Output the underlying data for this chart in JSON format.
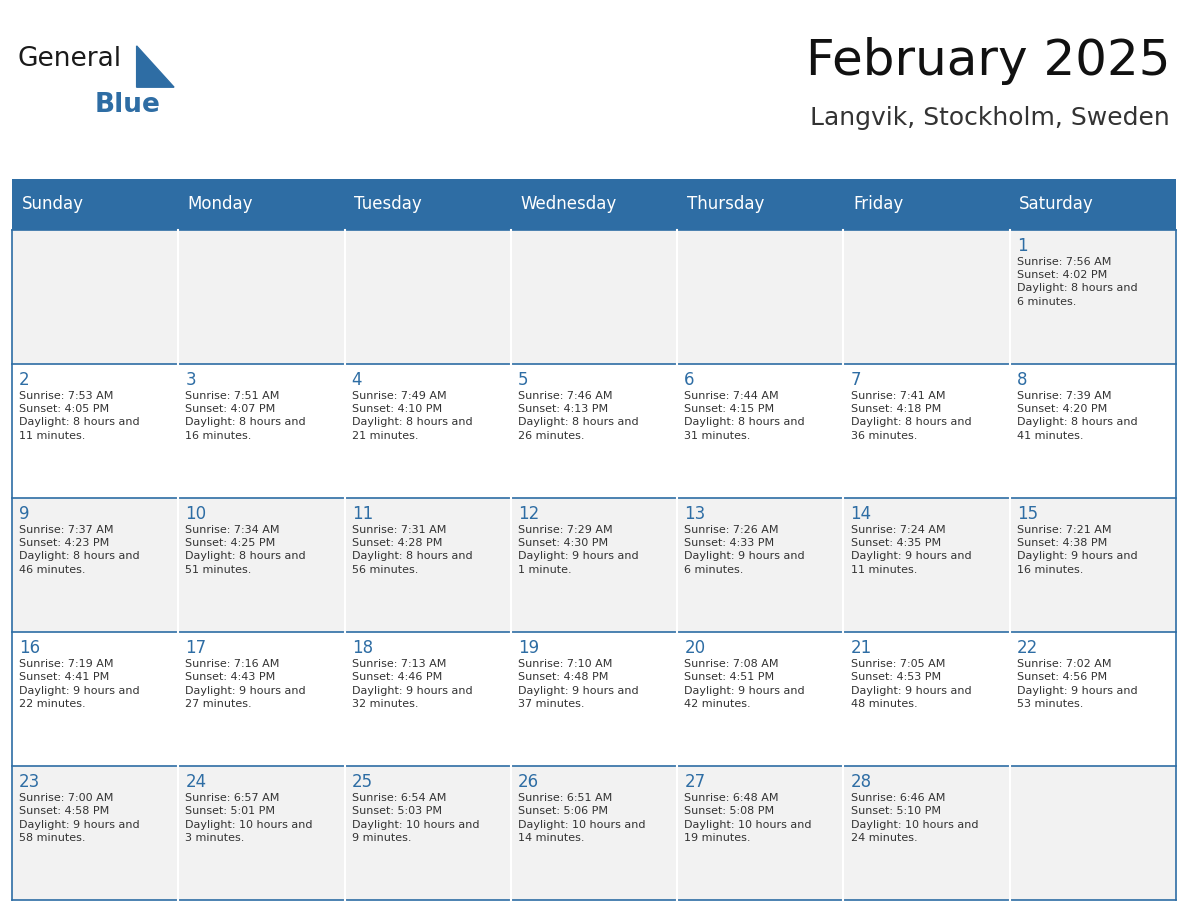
{
  "title": "February 2025",
  "subtitle": "Langvik, Stockholm, Sweden",
  "header_bg": "#2E6DA4",
  "header_text_color": "#FFFFFF",
  "cell_bg_odd": "#F2F2F2",
  "cell_bg_even": "#FFFFFF",
  "day_number_color": "#2E6DA4",
  "cell_text_color": "#333333",
  "days_of_week": [
    "Sunday",
    "Monday",
    "Tuesday",
    "Wednesday",
    "Thursday",
    "Friday",
    "Saturday"
  ],
  "logo_general_color": "#1a1a1a",
  "logo_blue_color": "#2E6DA4",
  "calendar": [
    [
      null,
      null,
      null,
      null,
      null,
      null,
      {
        "day": 1,
        "sunrise": "7:56 AM",
        "sunset": "4:02 PM",
        "daylight": "8 hours and 6 minutes."
      }
    ],
    [
      {
        "day": 2,
        "sunrise": "7:53 AM",
        "sunset": "4:05 PM",
        "daylight": "8 hours and 11 minutes."
      },
      {
        "day": 3,
        "sunrise": "7:51 AM",
        "sunset": "4:07 PM",
        "daylight": "8 hours and 16 minutes."
      },
      {
        "day": 4,
        "sunrise": "7:49 AM",
        "sunset": "4:10 PM",
        "daylight": "8 hours and 21 minutes."
      },
      {
        "day": 5,
        "sunrise": "7:46 AM",
        "sunset": "4:13 PM",
        "daylight": "8 hours and 26 minutes."
      },
      {
        "day": 6,
        "sunrise": "7:44 AM",
        "sunset": "4:15 PM",
        "daylight": "8 hours and 31 minutes."
      },
      {
        "day": 7,
        "sunrise": "7:41 AM",
        "sunset": "4:18 PM",
        "daylight": "8 hours and 36 minutes."
      },
      {
        "day": 8,
        "sunrise": "7:39 AM",
        "sunset": "4:20 PM",
        "daylight": "8 hours and 41 minutes."
      }
    ],
    [
      {
        "day": 9,
        "sunrise": "7:37 AM",
        "sunset": "4:23 PM",
        "daylight": "8 hours and 46 minutes."
      },
      {
        "day": 10,
        "sunrise": "7:34 AM",
        "sunset": "4:25 PM",
        "daylight": "8 hours and 51 minutes."
      },
      {
        "day": 11,
        "sunrise": "7:31 AM",
        "sunset": "4:28 PM",
        "daylight": "8 hours and 56 minutes."
      },
      {
        "day": 12,
        "sunrise": "7:29 AM",
        "sunset": "4:30 PM",
        "daylight": "9 hours and 1 minute."
      },
      {
        "day": 13,
        "sunrise": "7:26 AM",
        "sunset": "4:33 PM",
        "daylight": "9 hours and 6 minutes."
      },
      {
        "day": 14,
        "sunrise": "7:24 AM",
        "sunset": "4:35 PM",
        "daylight": "9 hours and 11 minutes."
      },
      {
        "day": 15,
        "sunrise": "7:21 AM",
        "sunset": "4:38 PM",
        "daylight": "9 hours and 16 minutes."
      }
    ],
    [
      {
        "day": 16,
        "sunrise": "7:19 AM",
        "sunset": "4:41 PM",
        "daylight": "9 hours and 22 minutes."
      },
      {
        "day": 17,
        "sunrise": "7:16 AM",
        "sunset": "4:43 PM",
        "daylight": "9 hours and 27 minutes."
      },
      {
        "day": 18,
        "sunrise": "7:13 AM",
        "sunset": "4:46 PM",
        "daylight": "9 hours and 32 minutes."
      },
      {
        "day": 19,
        "sunrise": "7:10 AM",
        "sunset": "4:48 PM",
        "daylight": "9 hours and 37 minutes."
      },
      {
        "day": 20,
        "sunrise": "7:08 AM",
        "sunset": "4:51 PM",
        "daylight": "9 hours and 42 minutes."
      },
      {
        "day": 21,
        "sunrise": "7:05 AM",
        "sunset": "4:53 PM",
        "daylight": "9 hours and 48 minutes."
      },
      {
        "day": 22,
        "sunrise": "7:02 AM",
        "sunset": "4:56 PM",
        "daylight": "9 hours and 53 minutes."
      }
    ],
    [
      {
        "day": 23,
        "sunrise": "7:00 AM",
        "sunset": "4:58 PM",
        "daylight": "9 hours and 58 minutes."
      },
      {
        "day": 24,
        "sunrise": "6:57 AM",
        "sunset": "5:01 PM",
        "daylight": "10 hours and 3 minutes."
      },
      {
        "day": 25,
        "sunrise": "6:54 AM",
        "sunset": "5:03 PM",
        "daylight": "10 hours and 9 minutes."
      },
      {
        "day": 26,
        "sunrise": "6:51 AM",
        "sunset": "5:06 PM",
        "daylight": "10 hours and 14 minutes."
      },
      {
        "day": 27,
        "sunrise": "6:48 AM",
        "sunset": "5:08 PM",
        "daylight": "10 hours and 19 minutes."
      },
      {
        "day": 28,
        "sunrise": "6:46 AM",
        "sunset": "5:10 PM",
        "daylight": "10 hours and 24 minutes."
      },
      null
    ]
  ]
}
